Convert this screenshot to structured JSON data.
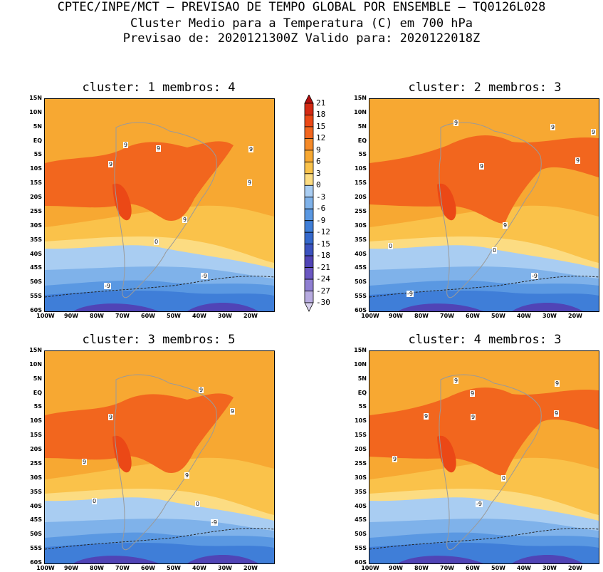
{
  "header": {
    "line1": "CPTEC/INPE/MCT – PREVISAO DE TEMPO GLOBAL POR ENSEMBLE – TQ0126L028",
    "line2": "Cluster Medio para a Temperatura (C) em 700 hPa",
    "line3": "Previsao de: 2020121300Z   Valido para: 2020122018Z"
  },
  "panels": [
    {
      "title": "cluster: 1  membros: 4",
      "labels": [
        {
          "text": "9"
        },
        {
          "text": "9"
        },
        {
          "text": "9"
        },
        {
          "text": "9"
        },
        {
          "text": "9"
        },
        {
          "text": "9"
        },
        {
          "text": "0"
        },
        {
          "text": "-9"
        },
        {
          "text": "-9"
        }
      ]
    },
    {
      "title": "cluster: 2  membros: 3",
      "labels": [
        {
          "text": "9"
        },
        {
          "text": "9"
        },
        {
          "text": "9"
        },
        {
          "text": "9"
        },
        {
          "text": "9"
        },
        {
          "text": "9"
        },
        {
          "text": "0"
        },
        {
          "text": "0"
        },
        {
          "text": "-9"
        },
        {
          "text": "-9"
        }
      ]
    },
    {
      "title": "cluster: 3  membros: 5",
      "labels": [
        {
          "text": "9"
        },
        {
          "text": "9"
        },
        {
          "text": "9"
        },
        {
          "text": "9"
        },
        {
          "text": "9"
        },
        {
          "text": "0"
        },
        {
          "text": "0"
        },
        {
          "text": "-9"
        }
      ]
    },
    {
      "title": "cluster: 4  membros: 3",
      "labels": [
        {
          "text": "9"
        },
        {
          "text": "9"
        },
        {
          "text": "9"
        },
        {
          "text": "9"
        },
        {
          "text": "9"
        },
        {
          "text": "9"
        },
        {
          "text": "9"
        },
        {
          "text": "0"
        },
        {
          "text": "-9"
        }
      ]
    }
  ],
  "lat_ticks": [
    "15N",
    "10N",
    "5N",
    "EQ",
    "5S",
    "10S",
    "15S",
    "20S",
    "25S",
    "30S",
    "35S",
    "40S",
    "45S",
    "50S",
    "55S",
    "60S"
  ],
  "lon_ticks": [
    "100W",
    "90W",
    "80W",
    "70W",
    "60W",
    "50W",
    "40W",
    "30W",
    "20W"
  ],
  "colorbar": {
    "labels": [
      "21",
      "18",
      "15",
      "12",
      "9",
      "6",
      "3",
      "0",
      "-3",
      "-6",
      "-9",
      "-12",
      "-15",
      "-18",
      "-21",
      "-24",
      "-27",
      "-30"
    ],
    "colors": [
      "#b30f0f",
      "#d42a14",
      "#eb4816",
      "#f2661e",
      "#f58a28",
      "#f7a832",
      "#fac24a",
      "#fcdc82",
      "#a9cdf2",
      "#7fb2ea",
      "#5a98e2",
      "#3f7ed8",
      "#3468cc",
      "#3b52bf",
      "#5044b6",
      "#6b57c2",
      "#8f7fd2",
      "#b7abe0",
      "#d9d2ee"
    ]
  }
}
